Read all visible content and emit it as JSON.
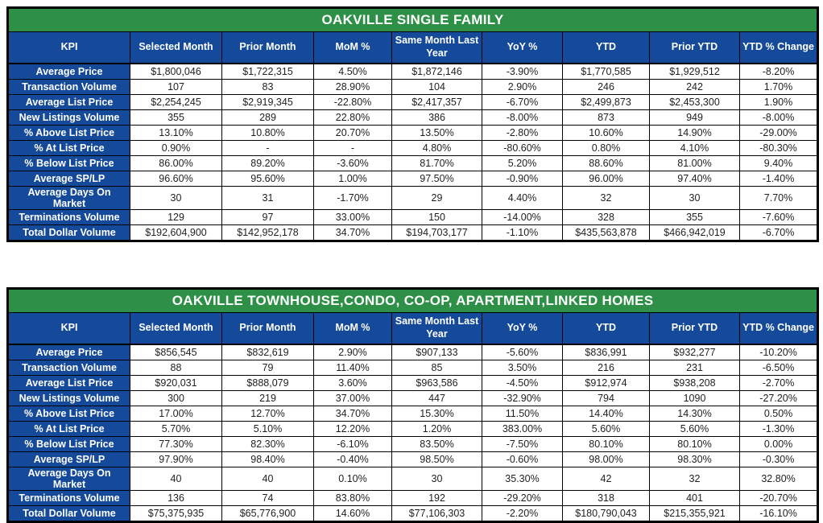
{
  "colors": {
    "title_green": "#2e9047",
    "header_blue": "#154a9b",
    "border_black": "#000000",
    "cell_white": "#ffffff"
  },
  "chart_data": [
    {
      "type": "table",
      "title": "OAKVILLE SINGLE FAMILY",
      "columns": [
        "KPI",
        "Selected Month",
        "Prior Month",
        "MoM %",
        "Same Month Last Year",
        "YoY %",
        "YTD",
        "Prior YTD",
        "YTD % Change"
      ],
      "rows": [
        [
          "Average Price",
          "$1,800,046",
          "$1,722,315",
          "4.50%",
          "$1,872,146",
          "-3.90%",
          "$1,770,585",
          "$1,929,512",
          "-8.20%"
        ],
        [
          "Transaction Volume",
          "107",
          "83",
          "28.90%",
          "104",
          "2.90%",
          "246",
          "242",
          "1.70%"
        ],
        [
          "Average List Price",
          "$2,254,245",
          "$2,919,345",
          "-22.80%",
          "$2,417,357",
          "-6.70%",
          "$2,499,873",
          "$2,453,300",
          "1.90%"
        ],
        [
          "New Listings Volume",
          "355",
          "289",
          "22.80%",
          "386",
          "-8.00%",
          "873",
          "949",
          "-8.00%"
        ],
        [
          "% Above List Price",
          "13.10%",
          "10.80%",
          "20.70%",
          "13.50%",
          "-2.80%",
          "10.60%",
          "14.90%",
          "-29.00%"
        ],
        [
          "% At List Price",
          "0.90%",
          "-",
          "-",
          "4.80%",
          "-80.60%",
          "0.80%",
          "4.10%",
          "-80.30%"
        ],
        [
          "% Below List Price",
          "86.00%",
          "89.20%",
          "-3.60%",
          "81.70%",
          "5.20%",
          "88.60%",
          "81.00%",
          "9.40%"
        ],
        [
          "Average SP/LP",
          "96.60%",
          "95.60%",
          "1.00%",
          "97.50%",
          "-0.90%",
          "96.00%",
          "97.40%",
          "-1.40%"
        ],
        [
          "Average Days On Market",
          "30",
          "31",
          "-1.70%",
          "29",
          "4.40%",
          "32",
          "30",
          "7.70%"
        ],
        [
          "Terminations Volume",
          "129",
          "97",
          "33.00%",
          "150",
          "-14.00%",
          "328",
          "355",
          "-7.60%"
        ],
        [
          "Total Dollar Volume",
          "$192,604,900",
          "$142,952,178",
          "34.70%",
          "$194,703,177",
          "-1.10%",
          "$435,563,878",
          "$466,942,019",
          "-6.70%"
        ]
      ]
    },
    {
      "type": "table",
      "title": "OAKVILLE TOWNHOUSE,CONDO, CO-OP, APARTMENT,LINKED HOMES",
      "columns": [
        "KPI",
        "Selected Month",
        "Prior Month",
        "MoM %",
        "Same Month Last Year",
        "YoY %",
        "YTD",
        "Prior YTD",
        "YTD % Change"
      ],
      "rows": [
        [
          "Average Price",
          "$856,545",
          "$832,619",
          "2.90%",
          "$907,133",
          "-5.60%",
          "$836,991",
          "$932,277",
          "-10.20%"
        ],
        [
          "Transaction Volume",
          "88",
          "79",
          "11.40%",
          "85",
          "3.50%",
          "216",
          "231",
          "-6.50%"
        ],
        [
          "Average List Price",
          "$920,031",
          "$888,079",
          "3.60%",
          "$963,586",
          "-4.50%",
          "$912,974",
          "$938,208",
          "-2.70%"
        ],
        [
          "New Listings Volume",
          "300",
          "219",
          "37.00%",
          "447",
          "-32.90%",
          "794",
          "1090",
          "-27.20%"
        ],
        [
          "% Above List Price",
          "17.00%",
          "12.70%",
          "34.70%",
          "15.30%",
          "11.50%",
          "14.40%",
          "14.30%",
          "0.50%"
        ],
        [
          "% At List Price",
          "5.70%",
          "5.10%",
          "12.20%",
          "1.20%",
          "383.00%",
          "5.60%",
          "5.60%",
          "-1.30%"
        ],
        [
          "% Below List Price",
          "77.30%",
          "82.30%",
          "-6.10%",
          "83.50%",
          "-7.50%",
          "80.10%",
          "80.10%",
          "0.00%"
        ],
        [
          "Average SP/LP",
          "97.90%",
          "98.40%",
          "-0.40%",
          "98.50%",
          "-0.60%",
          "98.00%",
          "98.30%",
          "-0.30%"
        ],
        [
          "Average Days On Market",
          "40",
          "40",
          "0.10%",
          "30",
          "35.30%",
          "42",
          "32",
          "32.80%"
        ],
        [
          "Terminations Volume",
          "136",
          "74",
          "83.80%",
          "192",
          "-29.20%",
          "318",
          "401",
          "-20.70%"
        ],
        [
          "Total Dollar Volume",
          "$75,375,935",
          "$65,776,900",
          "14.60%",
          "$77,106,303",
          "-2.20%",
          "$180,790,043",
          "$215,355,921",
          "-16.10%"
        ]
      ]
    }
  ]
}
